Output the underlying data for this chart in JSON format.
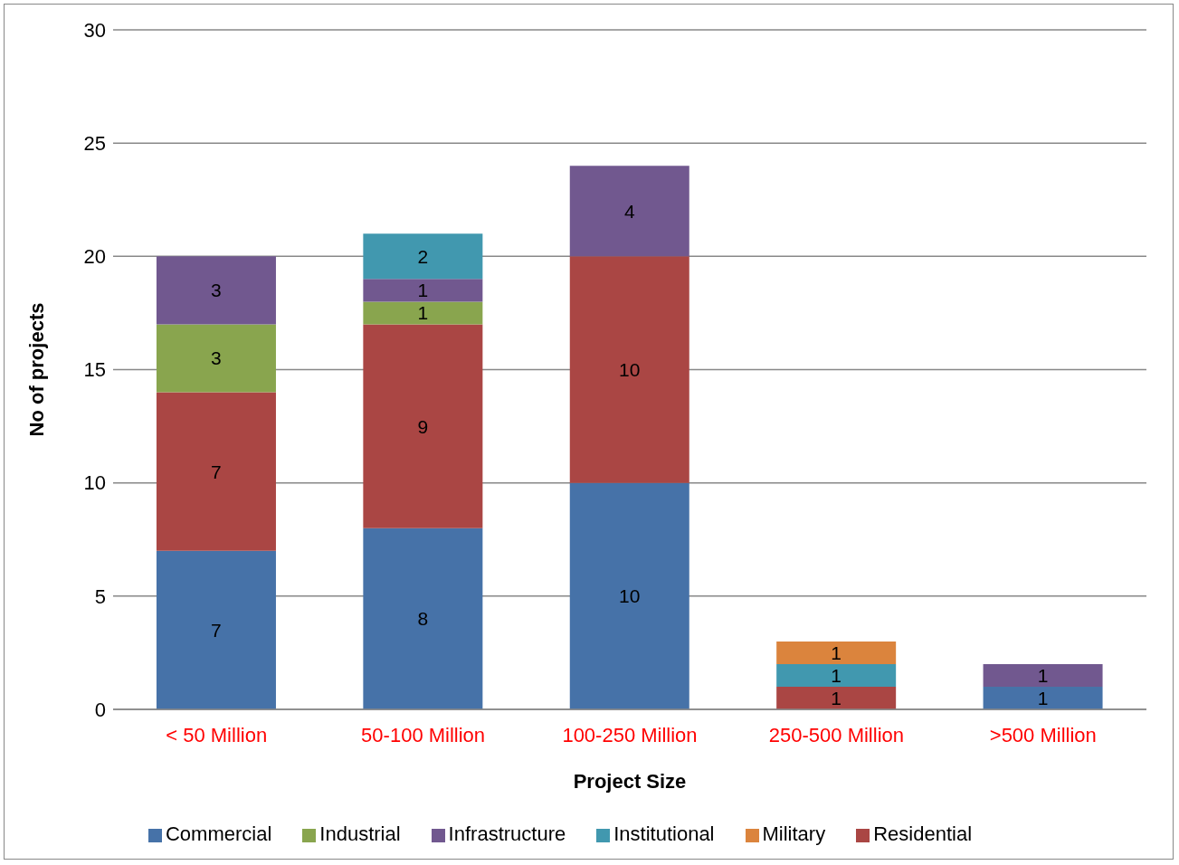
{
  "chart_data": {
    "type": "bar",
    "stacked": true,
    "xlabel": "Project Size",
    "ylabel": "No of projects",
    "categories": [
      "< 50 Million",
      "50-100 Million",
      "100-250 Million",
      "250-500 Million",
      ">500 Million"
    ],
    "series": [
      {
        "name": "Commercial",
        "color": "#4672a8",
        "values": [
          7,
          8,
          10,
          null,
          1
        ]
      },
      {
        "name": "Residential",
        "color": "#aa4644",
        "values": [
          7,
          9,
          10,
          1,
          null
        ]
      },
      {
        "name": "Industrial",
        "color": "#89a54e",
        "values": [
          3,
          1,
          null,
          null,
          null
        ]
      },
      {
        "name": "Infrastructure",
        "color": "#71588f",
        "values": [
          3,
          1,
          4,
          null,
          1
        ]
      },
      {
        "name": "Institutional",
        "color": "#4198af",
        "values": [
          null,
          2,
          null,
          1,
          null
        ]
      },
      {
        "name": "Military",
        "color": "#db843d",
        "values": [
          null,
          null,
          null,
          1,
          null
        ]
      }
    ],
    "ylim": [
      0,
      30
    ],
    "yticks": [
      0,
      5,
      10,
      15,
      20,
      25,
      30
    ],
    "grid": "y",
    "legend": "bottom",
    "data_labels": true
  }
}
